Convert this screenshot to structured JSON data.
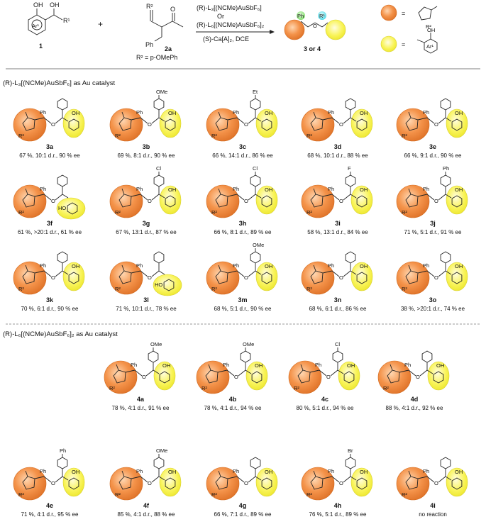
{
  "scheme": {
    "reactant1": {
      "label": "1",
      "ar": "Ar¹",
      "oh1": "OH",
      "oh2": "OH",
      "r": "R¹"
    },
    "plus": "+",
    "reactant2": {
      "label": "2a",
      "r2": "R²",
      "ph": "Ph",
      "r2_def": "R² = p-OMePh"
    },
    "conditions": {
      "line1": "(R)-L₃[(NCMe)AuSbF₆]",
      "line2": "Or",
      "line3": "(R)-L₆[(NCMe)AuSbF₆]₂",
      "line4": "(S)-Ca[A]₂, DCE"
    },
    "product": {
      "label": "3 or 4",
      "ph": "Ph",
      "r1": "R¹"
    },
    "legend": {
      "eq1": "=",
      "eq2": "=",
      "r2": "R²",
      "oh": "OH",
      "ar": "Ar¹"
    }
  },
  "section1": {
    "title": "(R)-L₃[(NCMe)AuSbF₆] as Au catalyst",
    "compounds": [
      {
        "id": "3a",
        "sub": "",
        "result": "67 %, 10:1 d.r., 90 % ee",
        "ho_down": false
      },
      {
        "id": "3b",
        "sub": "OMe",
        "result": "69 %, 8:1 d.r., 90 % ee",
        "ho_down": false
      },
      {
        "id": "3c",
        "sub": "Et",
        "result": "66 %, 14:1 d.r., 86 % ee",
        "ho_down": false
      },
      {
        "id": "3d",
        "sub": "",
        "result": "68 %, 10:1 d.r., 88 % ee",
        "ho_down": false
      },
      {
        "id": "3e",
        "sub": "",
        "result": "66 %, 9:1 d.r., 90 % ee",
        "ho_down": false
      },
      {
        "id": "3f",
        "sub": "",
        "result": "61 %, >20:1 d.r., 61 % ee",
        "ho_down": true
      },
      {
        "id": "3g",
        "sub": "Cl",
        "result": "67 %, 13:1 d.r., 87 % ee",
        "ho_down": false
      },
      {
        "id": "3h",
        "sub": "Cl",
        "result": "66 %, 8:1 d.r., 89 % ee",
        "ho_down": false
      },
      {
        "id": "3i",
        "sub": "F",
        "result": "58 %, 13:1 d.r., 84 % ee",
        "ho_down": false
      },
      {
        "id": "3j",
        "sub": "Ph",
        "result": "71 %, 5:1 d.r., 91 % ee",
        "ho_down": false
      },
      {
        "id": "3k",
        "sub": "",
        "result": "70 %, 6:1 d.r., 90 % ee",
        "ho_down": false
      },
      {
        "id": "3l",
        "sub": "",
        "result": "71 %, 10:1 d.r., 78 % ee",
        "ho_down": true
      },
      {
        "id": "3m",
        "sub": "OMe",
        "result": "68 %, 5:1 d.r., 90 % ee",
        "ho_down": false
      },
      {
        "id": "3n",
        "sub": "",
        "result": "68 %, 6:1 d.r., 86 % ee",
        "ho_down": false
      },
      {
        "id": "3o",
        "sub": "",
        "result": "38 %, >20:1 d.r., 74 % ee",
        "ho_down": false
      }
    ]
  },
  "section2": {
    "title": "(R)-L₆[(NCMe)AuSbF₆]₂ as Au catalyst",
    "compounds": [
      {
        "id": "4a",
        "sub": "OMe",
        "result": "78 %, 4:1 d.r., 91 % ee"
      },
      {
        "id": "4b",
        "sub": "OMe",
        "result": "78 %, 4:1 d.r., 94 % ee"
      },
      {
        "id": "4c",
        "sub": "Cl",
        "result": "80 %, 5:1 d.r., 94 % ee"
      },
      {
        "id": "4d",
        "sub": "",
        "result": "88 %, 4:1 d.r., 92 % ee"
      },
      {
        "id": "4e",
        "sub": "Ph",
        "result": "71 %, 4:1 d.r., 95 % ee"
      },
      {
        "id": "4f",
        "sub": "OMe",
        "result": "85 %, 4:1 d.r., 88 % ee"
      },
      {
        "id": "4g",
        "sub": "",
        "result": "66 %, 7:1 d.r., 89 % ee"
      },
      {
        "id": "4h",
        "sub": "Br",
        "result": "76 %, 5:1 d.r., 89 % ee"
      },
      {
        "id": "4i",
        "sub": "",
        "result": "no reaction"
      }
    ]
  },
  "atoms": {
    "ph": "Ph",
    "o": "O",
    "oh": "OH",
    "ho": "HO",
    "r2": "R²"
  },
  "colors": {
    "orange": "#f08a3c",
    "orange_edge": "#d2691e",
    "yellow": "#f7f23a",
    "line": "#222222"
  }
}
